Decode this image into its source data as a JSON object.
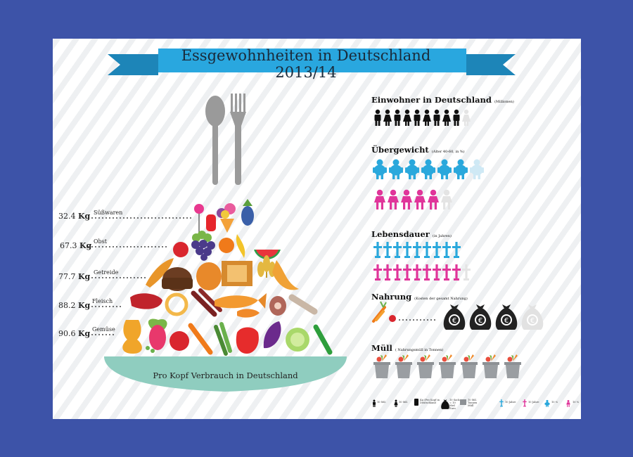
{
  "title": "Essgewohnheiten in Deutschland 2013/14",
  "bowl_label": "Pro Kopf Verbrauch in Deutschland",
  "consumption": [
    {
      "value": "32.4",
      "unit": "Kg",
      "category": "Süßwaren"
    },
    {
      "value": "67.3",
      "unit": "Kg",
      "category": "Obst"
    },
    {
      "value": "77.7",
      "unit": "Kg",
      "category": "Getreide"
    },
    {
      "value": "88.2",
      "unit": "Kg",
      "category": "Fleisch"
    },
    {
      "value": "90.6",
      "unit": "Kg",
      "category": "Gemüse"
    }
  ],
  "sections": {
    "einwohner": {
      "title": "Einwohner in Deutschland",
      "note": "(Millionen)",
      "icons": 8.3
    },
    "uebergewicht": {
      "title": "Übergewicht",
      "note": "(Alter 40-60, in %)",
      "men_icons": 7.3,
      "women_icons": 5.7
    },
    "lebensdauer": {
      "title": "Lebensdauer",
      "note": "(in Jahren)",
      "men_icons": 7.8,
      "women_icons": 8.3
    },
    "nahrung": {
      "title": "Nahrung",
      "note": "(Kosten der gesamt Nahrung)",
      "bags": 3.3
    },
    "muell": {
      "title": "Müll",
      "note": "( Nahrungsmüll in Tonnen)",
      "bins": 7.0
    }
  },
  "legend": [
    {
      "text": "10 Mil."
    },
    {
      "text": "10 Mil."
    },
    {
      "text": "Kg (Pro Kopf in Deutschland"
    },
    {
      "text": "10 Sack = 10 Mrd Euro"
    },
    {
      "text": "10 Mil. Tonnen Müll"
    },
    {
      "text": "10 Jahre"
    },
    {
      "text": "10 Jahre"
    },
    {
      "text": "10 %"
    },
    {
      "text": "10 %"
    }
  ],
  "colors": {
    "background": "#3d53a8",
    "ribbon": "#29a7df",
    "men": "#2aa8dc",
    "women": "#e0359a",
    "bowl": "#8fcdbf",
    "money_bag": "#222222"
  }
}
